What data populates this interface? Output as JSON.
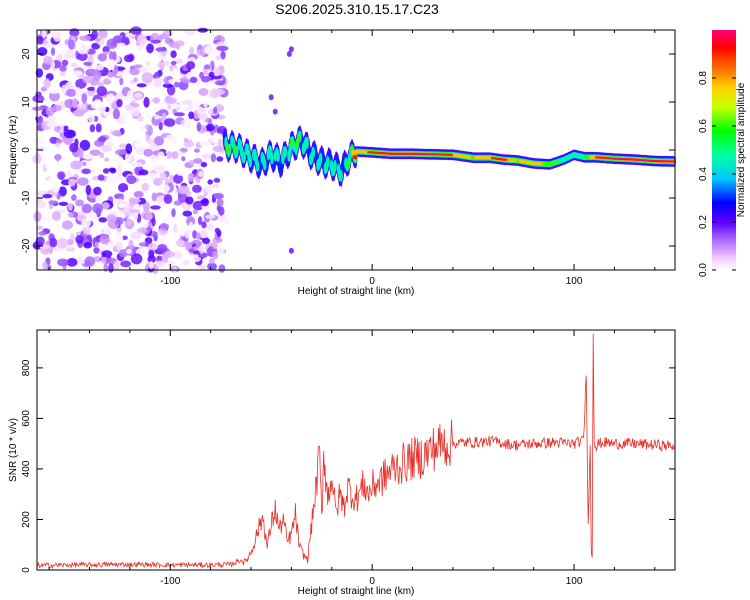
{
  "title": "S206.2025.310.15.17.C23",
  "colors": {
    "trace": "#e8302a",
    "frame": "#000000",
    "background": "#ffffff"
  },
  "chart_data": [
    {
      "type": "heatmap",
      "xlabel": "Height of straight line (km)",
      "ylabel": "Frequency (Hz)",
      "xlim": [
        -166,
        150
      ],
      "ylim": [
        -25,
        25
      ],
      "xticks": [
        -100,
        0,
        100
      ],
      "yticks": [
        -20,
        -10,
        0,
        10,
        20
      ],
      "colorbar": {
        "label": "Normalized spectral amplitude",
        "range": [
          0.0,
          1.0
        ],
        "ticks": [
          0.0,
          0.2,
          0.4,
          0.6,
          0.8
        ],
        "tick_labels": [
          "0.0",
          "0.2",
          "0.4",
          "0.6",
          "0.8"
        ]
      },
      "noise_region_x": [
        -166,
        -73
      ],
      "ridge": [
        [
          -73,
          1.0,
          0.45
        ],
        [
          -67,
          0.5,
          0.45
        ],
        [
          -60,
          -1.5,
          0.4
        ],
        [
          -55,
          -3.0,
          0.35
        ],
        [
          -50,
          -1.0,
          0.4
        ],
        [
          -45,
          -2.5,
          0.35
        ],
        [
          -40,
          0.5,
          0.45
        ],
        [
          -35,
          2.0,
          0.45
        ],
        [
          -30,
          -1.0,
          0.4
        ],
        [
          -25,
          -2.5,
          0.35
        ],
        [
          -20,
          -3.0,
          0.4
        ],
        [
          -15,
          -4.5,
          0.35
        ],
        [
          -12,
          -2.0,
          0.45
        ],
        [
          -8,
          -0.3,
          0.75
        ],
        [
          0,
          -0.5,
          0.9
        ],
        [
          10,
          -0.8,
          1.0
        ],
        [
          20,
          -0.8,
          0.95
        ],
        [
          30,
          -0.9,
          1.0
        ],
        [
          40,
          -1.0,
          0.85
        ],
        [
          50,
          -1.6,
          0.7
        ],
        [
          58,
          -1.6,
          0.85
        ],
        [
          65,
          -2.0,
          0.9
        ],
        [
          72,
          -2.2,
          0.7
        ],
        [
          80,
          -2.8,
          0.85
        ],
        [
          88,
          -3.0,
          0.6
        ],
        [
          95,
          -2.0,
          0.5
        ],
        [
          100,
          -1.0,
          0.5
        ],
        [
          105,
          -1.5,
          0.5
        ],
        [
          110,
          -1.5,
          0.85
        ],
        [
          120,
          -1.8,
          1.0
        ],
        [
          130,
          -2.0,
          0.95
        ],
        [
          140,
          -2.3,
          1.0
        ],
        [
          150,
          -2.4,
          1.0
        ]
      ]
    },
    {
      "type": "line",
      "xlabel": "Height of straight line (km)",
      "ylabel": "SNR (10 * v/v)",
      "xlim": [
        -166,
        150
      ],
      "ylim": [
        0,
        950
      ],
      "xticks": [
        -100,
        0,
        100
      ],
      "yticks": [
        0,
        200,
        400,
        600,
        800
      ],
      "series": [
        {
          "name": "SNR",
          "x": [
            -166,
            -150,
            -120,
            -100,
            -80,
            -70,
            -65,
            -63,
            -60,
            -58,
            -56,
            -54,
            -52,
            -50,
            -48,
            -46,
            -44,
            -42,
            -40,
            -38,
            -36,
            -34,
            -32,
            -30,
            -28,
            -26,
            -25,
            -24,
            -22,
            -20,
            -18,
            -16,
            -14,
            -12,
            -10,
            -8,
            -6,
            -4,
            -2,
            0,
            5,
            10,
            15,
            20,
            25,
            30,
            35,
            40,
            45,
            50,
            60,
            70,
            80,
            90,
            100,
            104,
            105,
            106,
            107,
            108,
            108.5,
            109,
            109.5,
            110,
            111,
            112,
            115,
            120,
            130,
            140,
            150
          ],
          "y": [
            18,
            20,
            22,
            20,
            20,
            22,
            40,
            30,
            70,
            120,
            170,
            210,
            90,
            180,
            240,
            160,
            200,
            110,
            140,
            220,
            90,
            60,
            40,
            180,
            310,
            460,
            200,
            470,
            280,
            380,
            220,
            300,
            250,
            330,
            300,
            280,
            310,
            340,
            300,
            330,
            360,
            400,
            420,
            440,
            450,
            480,
            500,
            500,
            505,
            505,
            510,
            495,
            500,
            505,
            500,
            510,
            550,
            790,
            200,
            480,
            100,
            50,
            950,
            520,
            480,
            500,
            505,
            500,
            500,
            495,
            490
          ],
          "noise_amplitude": 10
        }
      ]
    }
  ]
}
